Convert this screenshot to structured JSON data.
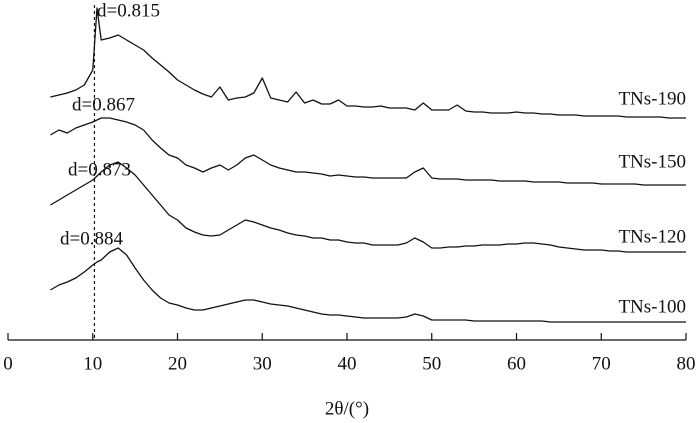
{
  "chart_data": {
    "type": "line",
    "x_label": "2θ/(°)",
    "x": [
      5,
      6,
      7,
      8,
      9,
      10,
      10.5,
      11,
      12,
      13,
      14,
      15,
      16,
      17,
      18,
      19,
      20,
      21,
      22,
      23,
      24,
      25,
      26,
      27,
      28,
      29,
      30,
      31,
      32,
      33,
      34,
      35,
      36,
      37,
      38,
      39,
      40,
      41,
      42,
      43,
      44,
      45,
      46,
      47,
      48,
      49,
      50,
      51,
      52,
      53,
      54,
      55,
      56,
      57,
      58,
      59,
      60,
      61,
      62,
      63,
      64,
      65,
      66,
      67,
      68,
      69,
      70,
      71,
      72,
      73,
      74,
      75,
      76,
      77,
      78,
      79,
      80
    ],
    "xlim": [
      0,
      80
    ],
    "xticks": [
      0,
      10,
      20,
      30,
      40,
      50,
      60,
      70,
      80
    ],
    "ylim": [
      0,
      340
    ],
    "ref_line_x": 10.2,
    "color": "#111111",
    "series": [
      {
        "name": "TNs-190",
        "values": [
          243,
          245,
          247,
          250,
          255,
          270,
          332,
          300,
          302,
          305,
          300,
          295,
          290,
          282,
          275,
          268,
          260,
          255,
          250,
          246,
          243,
          253,
          240,
          242,
          243,
          247,
          262,
          242,
          240,
          238,
          248,
          237,
          240,
          236,
          236,
          240,
          234,
          234,
          233,
          233,
          234,
          232,
          232,
          232,
          230,
          237,
          230,
          230,
          230,
          235,
          229,
          228,
          228,
          227,
          227,
          227,
          228,
          227,
          227,
          226,
          226,
          225,
          225,
          225,
          224,
          224,
          224,
          224,
          224,
          223,
          223,
          223,
          223,
          223,
          222,
          222,
          222
        ]
      },
      {
        "name": "TNs-150",
        "values": [
          205,
          210,
          207,
          212,
          215,
          218,
          220,
          222,
          222,
          220,
          218,
          215,
          210,
          200,
          192,
          185,
          182,
          175,
          172,
          168,
          172,
          175,
          170,
          175,
          182,
          185,
          180,
          175,
          172,
          170,
          168,
          168,
          167,
          166,
          164,
          165,
          164,
          163,
          163,
          162,
          162,
          162,
          162,
          162,
          168,
          172,
          162,
          161,
          161,
          161,
          160,
          160,
          160,
          160,
          159,
          159,
          159,
          159,
          158,
          158,
          158,
          158,
          157,
          157,
          157,
          157,
          156,
          156,
          156,
          156,
          156,
          155,
          155,
          155,
          155,
          155,
          155
        ]
      },
      {
        "name": "TNs-120",
        "values": [
          135,
          140,
          145,
          150,
          155,
          160,
          164,
          168,
          175,
          178,
          172,
          165,
          155,
          145,
          135,
          125,
          120,
          112,
          108,
          105,
          104,
          105,
          110,
          115,
          120,
          118,
          115,
          112,
          110,
          107,
          105,
          104,
          102,
          102,
          100,
          100,
          98,
          97,
          97,
          95,
          95,
          95,
          95,
          97,
          102,
          98,
          92,
          92,
          93,
          93,
          94,
          94,
          95,
          95,
          95,
          96,
          96,
          97,
          97,
          96,
          95,
          93,
          92,
          91,
          90,
          90,
          90,
          89,
          89,
          88,
          88,
          88,
          88,
          88,
          88,
          88,
          88
        ]
      },
      {
        "name": "TNs-100",
        "values": [
          50,
          55,
          58,
          62,
          68,
          75,
          78,
          80,
          88,
          92,
          85,
          72,
          60,
          50,
          42,
          37,
          35,
          32,
          30,
          30,
          32,
          34,
          36,
          38,
          40,
          40,
          38,
          36,
          35,
          34,
          32,
          30,
          28,
          26,
          25,
          25,
          24,
          23,
          22,
          22,
          22,
          22,
          22,
          23,
          26,
          24,
          20,
          20,
          20,
          20,
          20,
          19,
          19,
          19,
          19,
          19,
          19,
          19,
          19,
          19,
          18,
          18,
          18,
          18,
          18,
          18,
          18,
          18,
          18,
          18,
          18,
          18,
          18,
          18,
          18,
          18,
          18
        ]
      }
    ],
    "annotations": [
      "d=0.815",
      "d=0.867",
      "d=0.873",
      "d=0.884"
    ]
  }
}
